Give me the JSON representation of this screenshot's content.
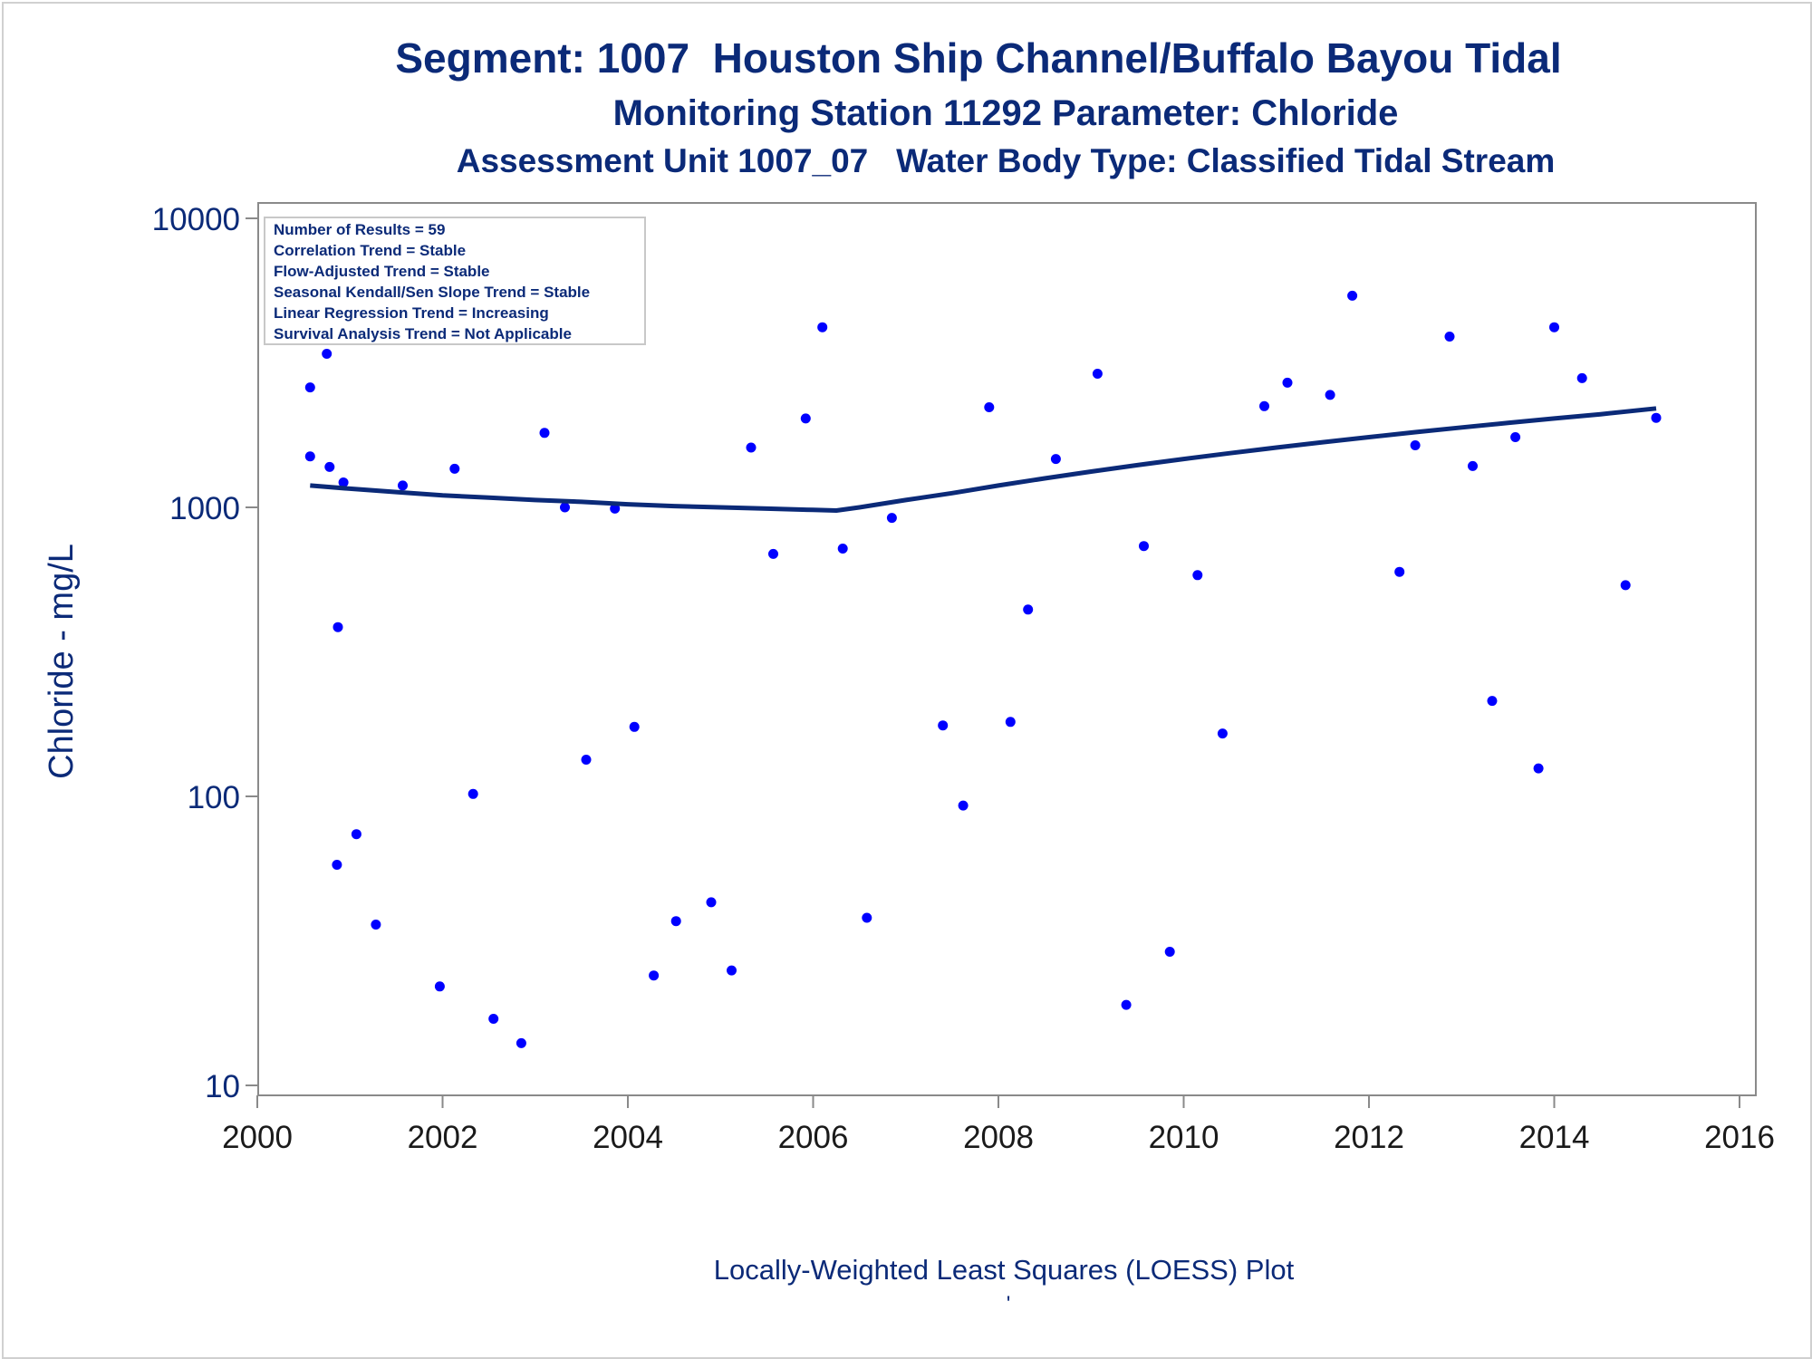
{
  "chart_data": {
    "type": "scatter",
    "title": "Segment: 1007  Houston Ship Channel/Buffalo Bayou Tidal",
    "subtitle1": "Monitoring Station 11292 Parameter: Chloride",
    "subtitle2": "Assessment Unit 1007_07   Water Body Type: Classified Tidal Stream",
    "ylabel": "Chloride - mg/L",
    "xlabel": "Locally-Weighted Least Squares (LOESS) Plot",
    "footnote": "'",
    "yscale": "log",
    "xlim": [
      2000,
      2016
    ],
    "ylim": [
      10,
      10000
    ],
    "x_ticks": [
      "2000",
      "2002",
      "2004",
      "2006",
      "2008",
      "2010",
      "2012",
      "2014",
      "2016"
    ],
    "y_ticks": [
      "10",
      "100",
      "1000",
      "10000"
    ],
    "legend_position": "top-left",
    "stats": [
      "Number of Results = 59",
      "Correlation Trend = Stable",
      "Flow-Adjusted Trend = Stable",
      "Seasonal Kendall/Sen Slope Trend = Stable",
      "Linear Regression Trend = Increasing",
      "Survival Analysis Trend = Not Applicable"
    ],
    "colors": {
      "points": "#0000ff",
      "loess": "#0b2a78",
      "text": "#0b2a78",
      "axis": "#8a8a8a"
    },
    "series": [
      {
        "kind": "points",
        "x": [
          2000.57,
          2000.57,
          2000.67,
          2000.75,
          2000.78,
          2000.86,
          2000.87,
          2000.93,
          2001.07,
          2001.28,
          2001.57,
          2001.97,
          2002.13,
          2002.33,
          2002.55,
          2002.85,
          2003.1,
          2003.32,
          2003.55,
          2003.86,
          2004.07,
          2004.28,
          2004.52,
          2004.9,
          2005.12,
          2005.33,
          2005.57,
          2005.92,
          2006.1,
          2006.32,
          2006.58,
          2006.85,
          2007.4,
          2007.62,
          2007.9,
          2008.13,
          2008.32,
          2008.62,
          2009.07,
          2009.38,
          2009.57,
          2009.85,
          2010.15,
          2010.42,
          2010.87,
          2011.12,
          2011.58,
          2011.82,
          2012.33,
          2012.5,
          2012.87,
          2013.12,
          2013.33,
          2013.58,
          2013.83,
          2014.0,
          2014.3,
          2014.77,
          2015.1
        ],
        "y": [
          2600,
          1500,
          5500,
          3400,
          1380,
          58,
          385,
          1220,
          74,
          36,
          1190,
          22,
          1360,
          102,
          17,
          14,
          1810,
          1000,
          134,
          990,
          174,
          24,
          37,
          43,
          25,
          1610,
          690,
          2030,
          4200,
          720,
          38,
          920,
          176,
          93,
          2220,
          181,
          443,
          1470,
          2900,
          19,
          735,
          29,
          583,
          165,
          2240,
          2700,
          2450,
          5400,
          598,
          1640,
          3900,
          1390,
          214,
          1750,
          125,
          4200,
          2800,
          538,
          2040
        ]
      },
      {
        "kind": "loess",
        "x": [
          2000.57,
          2001.0,
          2001.5,
          2002.0,
          2002.5,
          2003.0,
          2003.5,
          2004.0,
          2004.5,
          2005.0,
          2005.5,
          2006.0,
          2006.25,
          2006.5,
          2007.0,
          2007.5,
          2008.0,
          2008.5,
          2009.0,
          2009.5,
          2010.0,
          2010.5,
          2011.0,
          2011.5,
          2012.0,
          2012.5,
          2013.0,
          2013.5,
          2014.0,
          2014.5,
          2015.1
        ],
        "y": [
          1190,
          1160,
          1130,
          1100,
          1080,
          1060,
          1045,
          1025,
          1010,
          1000,
          990,
          980,
          975,
          1000,
          1060,
          1120,
          1190,
          1260,
          1330,
          1400,
          1470,
          1540,
          1610,
          1680,
          1750,
          1820,
          1890,
          1960,
          2030,
          2100,
          2200
        ]
      }
    ]
  }
}
